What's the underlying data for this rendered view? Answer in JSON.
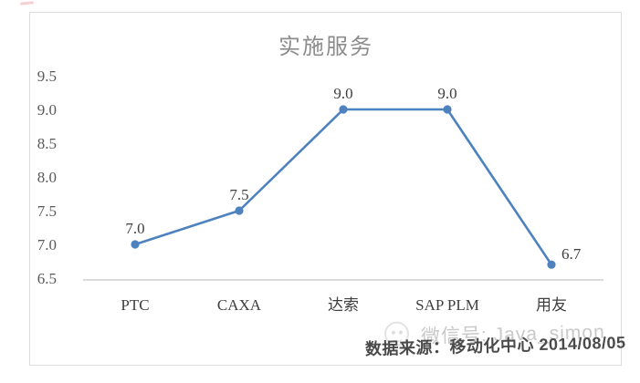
{
  "chart_data": {
    "type": "line",
    "title": "实施服务",
    "categories": [
      "PTC",
      "CAXA",
      "达索",
      "SAP PLM",
      "用友"
    ],
    "values": [
      7.0,
      7.5,
      9.0,
      9.0,
      6.7
    ],
    "data_labels": [
      "7.0",
      "7.5",
      "9.0",
      "9.0",
      "6.7"
    ],
    "label_positions": [
      "above",
      "above",
      "above",
      "above",
      "right"
    ],
    "xlabel": "",
    "ylabel": "",
    "ylim": [
      6.5,
      9.5
    ],
    "yticks": [
      "9.5",
      "9.0",
      "8.5",
      "8.0",
      "7.5",
      "7.0",
      "6.5"
    ],
    "grid": false,
    "legend": "none",
    "line_color": "#4d82be",
    "marker": "circle"
  },
  "footer": {
    "watermark": "微信号: Java_simon",
    "source": "数据来源：移动化中心 2014/08/05"
  },
  "colors": {
    "line": "#4d82be",
    "title_text": "#8c8c8c",
    "axis_text": "#595959",
    "label_text": "#3f3f3f",
    "frame_border": "#dcdcdc",
    "axis_line": "#c6c6c6",
    "watermark_text": "#c9c9c9",
    "source_text": "#4a4a4a"
  }
}
